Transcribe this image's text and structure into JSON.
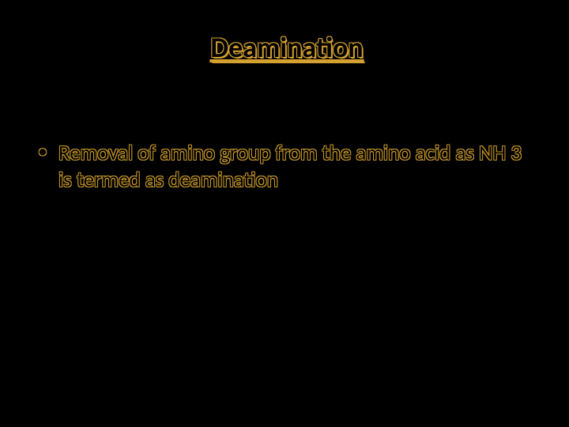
{
  "slide": {
    "title": "Deamination",
    "title_color": "#d4a030",
    "title_fontsize": 36,
    "title_underlined": true,
    "bullets": [
      {
        "marker": "•",
        "text": "Removal of amino group from the amino acid as NH 3 is termed as deamination"
      }
    ],
    "body_color": "#c89828",
    "body_fontsize": 27,
    "background_color": "#000000"
  }
}
